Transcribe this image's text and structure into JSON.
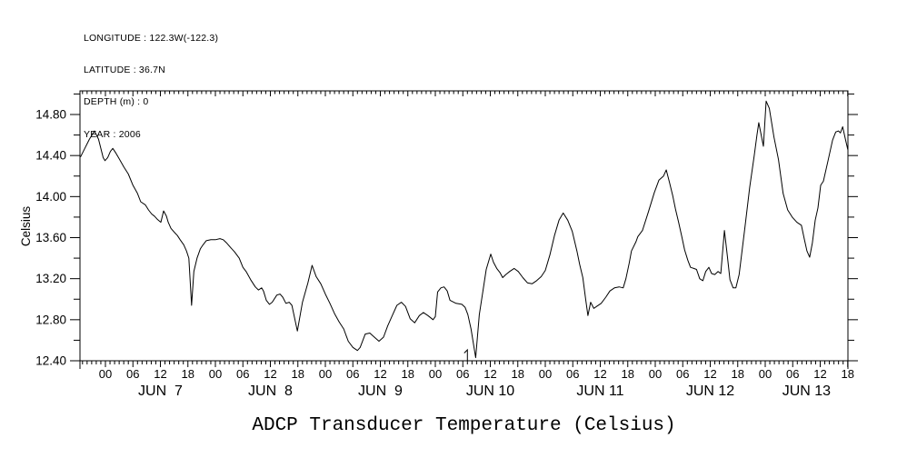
{
  "meta": {
    "longitude": "LONGITUDE : 122.3W(-122.3)",
    "latitude": "LATITUDE : 36.7N",
    "depth": "DEPTH (m) : 0",
    "year": "YEAR : 2006"
  },
  "chart_data": {
    "type": "line",
    "title": "ADCP Transducer Temperature (Celsius)",
    "ylabel": "Celsius",
    "line_color": "#000000",
    "background": "#ffffff",
    "grid": false,
    "x_axis": {
      "description": "time, hours relative to JUN 7 2006 00:00; axis spans JUN 6 ~18:40 to JUN 13 18:00",
      "minor_tick_hours": 1,
      "label_every_hours": 6,
      "hour_label_cycle": [
        "00",
        "06",
        "12",
        "18"
      ],
      "start_hour": -5.5,
      "end_hour": 162
    },
    "y_axis": {
      "min": 12.4,
      "max": 15.03,
      "major_ticks": [
        {
          "value": 12.4,
          "label": "12.40"
        },
        {
          "value": 12.8,
          "label": "12.80"
        },
        {
          "value": 13.2,
          "label": "13.20"
        },
        {
          "value": 13.6,
          "label": "13.60"
        },
        {
          "value": 14.0,
          "label": "14.00"
        },
        {
          "value": 14.4,
          "label": "14.40"
        },
        {
          "value": 14.8,
          "label": "14.80"
        }
      ],
      "minor_ticks": [
        12.6,
        13.0,
        13.4,
        13.8,
        14.2,
        14.6,
        15.0
      ]
    },
    "days": [
      {
        "label": "JUN  7",
        "start_hour": 0
      },
      {
        "label": "JUN  8",
        "start_hour": 24
      },
      {
        "label": "JUN  9",
        "start_hour": 48
      },
      {
        "label": "JUN 10",
        "start_hour": 72
      },
      {
        "label": "JUN 11",
        "start_hour": 96
      },
      {
        "label": "JUN 12",
        "start_hour": 120
      },
      {
        "label": "JUN 13",
        "start_hour": 144
      }
    ],
    "event_marker": {
      "label": "1",
      "hour": 79
    },
    "series": [
      {
        "name": "ADCP transducer temperature (C)",
        "points": [
          [
            -5.4,
            14.39
          ],
          [
            -4.5,
            14.47
          ],
          [
            -3.5,
            14.56
          ],
          [
            -2.4,
            14.64
          ],
          [
            -1.5,
            14.56
          ],
          [
            -0.5,
            14.38
          ],
          [
            -0.1,
            14.35
          ],
          [
            0.5,
            14.38
          ],
          [
            1.1,
            14.44
          ],
          [
            1.6,
            14.47
          ],
          [
            2.2,
            14.43
          ],
          [
            3,
            14.37
          ],
          [
            4,
            14.29
          ],
          [
            5,
            14.22
          ],
          [
            6,
            14.11
          ],
          [
            7,
            14.03
          ],
          [
            7.7,
            13.95
          ],
          [
            8.7,
            13.92
          ],
          [
            9.4,
            13.87
          ],
          [
            10.1,
            13.83
          ],
          [
            10.7,
            13.81
          ],
          [
            11.3,
            13.78
          ],
          [
            12.1,
            13.75
          ],
          [
            12.7,
            13.86
          ],
          [
            13.3,
            13.81
          ],
          [
            13.7,
            13.75
          ],
          [
            14.3,
            13.69
          ],
          [
            15.1,
            13.65
          ],
          [
            15.7,
            13.62
          ],
          [
            16.3,
            13.58
          ],
          [
            17.1,
            13.53
          ],
          [
            17.7,
            13.47
          ],
          [
            18.2,
            13.4
          ],
          [
            18.8,
            12.94
          ],
          [
            19.3,
            13.27
          ],
          [
            20,
            13.4
          ],
          [
            20.7,
            13.49
          ],
          [
            21.3,
            13.53
          ],
          [
            22,
            13.57
          ],
          [
            23,
            13.58
          ],
          [
            24,
            13.58
          ],
          [
            25,
            13.59
          ],
          [
            25.7,
            13.58
          ],
          [
            26.4,
            13.55
          ],
          [
            27.4,
            13.5
          ],
          [
            28.2,
            13.46
          ],
          [
            29.2,
            13.4
          ],
          [
            30,
            13.31
          ],
          [
            30.7,
            13.27
          ],
          [
            31.7,
            13.19
          ],
          [
            32.7,
            13.12
          ],
          [
            33.4,
            13.09
          ],
          [
            34.1,
            13.11
          ],
          [
            34.5,
            13.08
          ],
          [
            35.1,
            12.99
          ],
          [
            35.8,
            12.95
          ],
          [
            36.4,
            12.97
          ],
          [
            37.4,
            13.04
          ],
          [
            38.1,
            13.05
          ],
          [
            38.7,
            13.02
          ],
          [
            39.4,
            12.96
          ],
          [
            40.1,
            12.97
          ],
          [
            40.7,
            12.94
          ],
          [
            41.9,
            12.69
          ],
          [
            43,
            12.97
          ],
          [
            44.2,
            13.16
          ],
          [
            45.1,
            13.33
          ],
          [
            46,
            13.22
          ],
          [
            47,
            13.15
          ],
          [
            48,
            13.05
          ],
          [
            49,
            12.96
          ],
          [
            50,
            12.86
          ],
          [
            51,
            12.78
          ],
          [
            52,
            12.71
          ],
          [
            53,
            12.59
          ],
          [
            54,
            12.53
          ],
          [
            55,
            12.5
          ],
          [
            55.6,
            12.53
          ],
          [
            56.7,
            12.66
          ],
          [
            57.7,
            12.67
          ],
          [
            58.7,
            12.63
          ],
          [
            59.7,
            12.59
          ],
          [
            60.7,
            12.63
          ],
          [
            61.6,
            12.74
          ],
          [
            62.6,
            12.84
          ],
          [
            63.6,
            12.94
          ],
          [
            64.6,
            12.97
          ],
          [
            65.5,
            12.93
          ],
          [
            66.5,
            12.81
          ],
          [
            67.5,
            12.77
          ],
          [
            68.5,
            12.84
          ],
          [
            69.4,
            12.87
          ],
          [
            70.4,
            12.84
          ],
          [
            71.5,
            12.8
          ],
          [
            72,
            12.83
          ],
          [
            72.5,
            13.07
          ],
          [
            73.2,
            13.11
          ],
          [
            73.9,
            13.12
          ],
          [
            74.6,
            13.08
          ],
          [
            75.2,
            12.99
          ],
          [
            76.5,
            12.96
          ],
          [
            77.8,
            12.95
          ],
          [
            78.5,
            12.92
          ],
          [
            79.1,
            12.85
          ],
          [
            79.8,
            12.71
          ],
          [
            80.8,
            12.43
          ],
          [
            81.6,
            12.85
          ],
          [
            82.4,
            13.08
          ],
          [
            83.1,
            13.29
          ],
          [
            84.1,
            13.44
          ],
          [
            84.7,
            13.36
          ],
          [
            85.4,
            13.3
          ],
          [
            86.1,
            13.26
          ],
          [
            86.7,
            13.21
          ],
          [
            87.4,
            13.24
          ],
          [
            88.2,
            13.27
          ],
          [
            89.2,
            13.3
          ],
          [
            90.1,
            13.27
          ],
          [
            91.1,
            13.21
          ],
          [
            92.1,
            13.16
          ],
          [
            93.1,
            13.15
          ],
          [
            94.1,
            13.18
          ],
          [
            95.1,
            13.22
          ],
          [
            96,
            13.28
          ],
          [
            97,
            13.43
          ],
          [
            98,
            13.62
          ],
          [
            99,
            13.77
          ],
          [
            99.9,
            13.84
          ],
          [
            100.9,
            13.77
          ],
          [
            101.9,
            13.66
          ],
          [
            102.9,
            13.47
          ],
          [
            103.5,
            13.34
          ],
          [
            104.2,
            13.21
          ],
          [
            104.8,
            13.0
          ],
          [
            105.3,
            12.84
          ],
          [
            105.9,
            12.97
          ],
          [
            106.6,
            12.91
          ],
          [
            107.2,
            12.93
          ],
          [
            108.2,
            12.96
          ],
          [
            109.2,
            13.02
          ],
          [
            110.1,
            13.08
          ],
          [
            111.1,
            13.11
          ],
          [
            112.1,
            13.12
          ],
          [
            113,
            13.11
          ],
          [
            113.6,
            13.2
          ],
          [
            114.3,
            13.35
          ],
          [
            114.8,
            13.47
          ],
          [
            115.8,
            13.56
          ],
          [
            116.2,
            13.61
          ],
          [
            117.2,
            13.67
          ],
          [
            118.5,
            13.85
          ],
          [
            119.8,
            14.04
          ],
          [
            120.8,
            14.16
          ],
          [
            121.8,
            14.2
          ],
          [
            122.4,
            14.26
          ],
          [
            123.1,
            14.14
          ],
          [
            123.8,
            14.01
          ],
          [
            124.4,
            13.88
          ],
          [
            125.1,
            13.75
          ],
          [
            125.8,
            13.61
          ],
          [
            126.4,
            13.48
          ],
          [
            127.1,
            13.38
          ],
          [
            127.7,
            13.31
          ],
          [
            128.4,
            13.3
          ],
          [
            129,
            13.29
          ],
          [
            129.7,
            13.2
          ],
          [
            130.4,
            13.18
          ],
          [
            131,
            13.27
          ],
          [
            131.7,
            13.31
          ],
          [
            132.3,
            13.25
          ],
          [
            133,
            13.24
          ],
          [
            133.7,
            13.27
          ],
          [
            134.3,
            13.25
          ],
          [
            135.1,
            13.67
          ],
          [
            135.7,
            13.43
          ],
          [
            136.3,
            13.19
          ],
          [
            137,
            13.11
          ],
          [
            137.6,
            13.11
          ],
          [
            138.3,
            13.24
          ],
          [
            139.6,
            13.71
          ],
          [
            140.6,
            14.09
          ],
          [
            141.6,
            14.4
          ],
          [
            142.2,
            14.6
          ],
          [
            142.6,
            14.72
          ],
          [
            143.6,
            14.49
          ],
          [
            144.2,
            14.93
          ],
          [
            144.9,
            14.86
          ],
          [
            145.9,
            14.58
          ],
          [
            146.9,
            14.36
          ],
          [
            147.9,
            14.03
          ],
          [
            148.9,
            13.87
          ],
          [
            149.9,
            13.8
          ],
          [
            150.9,
            13.75
          ],
          [
            151.9,
            13.72
          ],
          [
            152.5,
            13.59
          ],
          [
            153.1,
            13.47
          ],
          [
            153.7,
            13.41
          ],
          [
            154.3,
            13.55
          ],
          [
            154.9,
            13.77
          ],
          [
            155.5,
            13.89
          ],
          [
            156.1,
            14.11
          ],
          [
            156.7,
            14.15
          ],
          [
            157.7,
            14.35
          ],
          [
            158.7,
            14.55
          ],
          [
            159.4,
            14.63
          ],
          [
            160,
            14.64
          ],
          [
            160.4,
            14.62
          ],
          [
            160.9,
            14.68
          ],
          [
            161.5,
            14.56
          ],
          [
            162,
            14.46
          ]
        ]
      }
    ]
  }
}
